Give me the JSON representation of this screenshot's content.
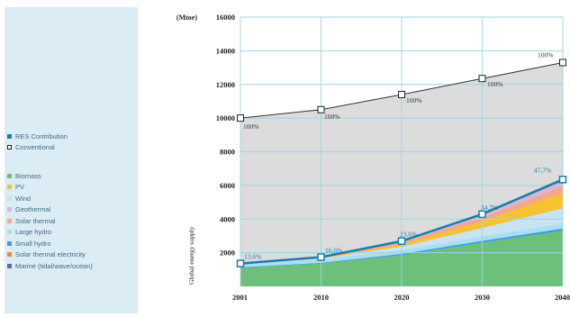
{
  "legend": {
    "group1": [
      {
        "label": "RES Contribution",
        "color": "#1c7fa6",
        "hollow": false
      },
      {
        "label": "Conventional",
        "color": "#ffffff",
        "hollow": true
      }
    ],
    "group2": [
      {
        "label": "Biomass",
        "color": "#6cc07a"
      },
      {
        "label": "PV",
        "color": "#f6c330"
      },
      {
        "label": "Wind",
        "color": "#c9e3f2"
      },
      {
        "label": "Geothermal",
        "color": "#d6b6d9"
      },
      {
        "label": "Solar thermal",
        "color": "#f5a78a"
      },
      {
        "label": "Large hydro",
        "color": "#a9dff0"
      },
      {
        "label": "Small hydro",
        "color": "#3d9fe0"
      },
      {
        "label": "Solar thermal electricity",
        "color": "#ef8a3e"
      },
      {
        "label": "Marine (tidal/wave/ocean)",
        "color": "#5b6bc0"
      }
    ]
  },
  "chart_data": {
    "type": "area",
    "unit_label": "(Mtoe)",
    "ylabel": "Global energy supply",
    "xlabel": "",
    "x": [
      "2001",
      "2010",
      "2020",
      "2030",
      "2040"
    ],
    "ylim": [
      0,
      16000
    ],
    "yticks": [
      2000,
      4000,
      6000,
      8000,
      10000,
      12000,
      14000,
      16000
    ],
    "grid": true,
    "colors": {
      "grid": "#9fd3e6",
      "total_fill": "#dcdcdc",
      "total_line": "#333333",
      "res_line": "#1a7ea8",
      "res_label": "#1a7ea8"
    },
    "series": [
      {
        "name": "Conventional",
        "values": [
          10000,
          10500,
          11400,
          12350,
          13300
        ]
      },
      {
        "name": "RES Contribution",
        "values": [
          1360,
          1740,
          2690,
          4290,
          6350
        ]
      }
    ],
    "stacked_res": [
      {
        "name": "Biomass",
        "color": "#6cc07a",
        "values": [
          1100,
          1350,
          1850,
          2600,
          3300
        ]
      },
      {
        "name": "Small hydro",
        "color": "#3d9fe0",
        "values": [
          40,
          50,
          80,
          110,
          140
        ]
      },
      {
        "name": "Large hydro",
        "color": "#a9dff0",
        "values": [
          180,
          200,
          230,
          260,
          300
        ]
      },
      {
        "name": "Wind",
        "color": "#c9e3f2",
        "values": [
          10,
          50,
          200,
          500,
          900
        ]
      },
      {
        "name": "PV",
        "color": "#f6c330",
        "values": [
          5,
          20,
          120,
          380,
          900
        ]
      },
      {
        "name": "Solar thermal",
        "color": "#f5a78a",
        "values": [
          10,
          30,
          120,
          250,
          400
        ]
      },
      {
        "name": "Geothermal",
        "color": "#d6b6d9",
        "values": [
          10,
          30,
          70,
          150,
          300
        ]
      },
      {
        "name": "Solar thermal electricity",
        "color": "#ef8a3e",
        "values": [
          2,
          5,
          10,
          20,
          60
        ]
      },
      {
        "name": "Marine (tidal/wave/ocean)",
        "color": "#5b6bc0",
        "values": [
          3,
          5,
          10,
          20,
          50
        ]
      }
    ],
    "labels_conventional": [
      "100%",
      "100%",
      "100%",
      "100%",
      "100%"
    ],
    "labels_res": [
      "13,6%",
      "16,6%",
      "23,6%",
      "34,7%",
      "47,7%"
    ]
  }
}
